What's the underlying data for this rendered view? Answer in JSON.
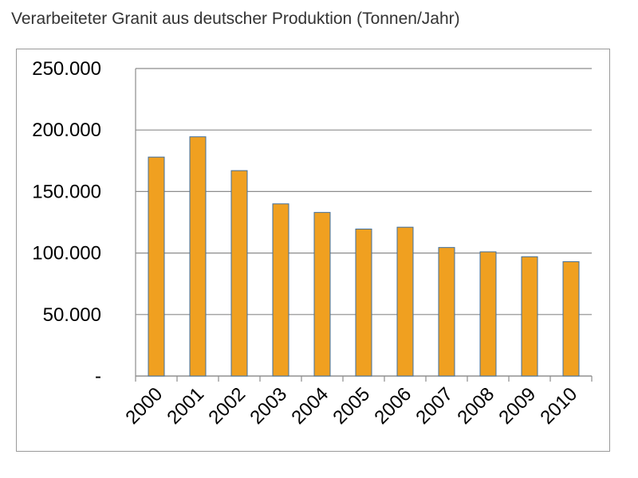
{
  "chart_data": {
    "type": "bar",
    "title": "Verarbeiteter Granit aus deutscher Produktion (Tonnen/Jahr)",
    "xlabel": "",
    "ylabel": "",
    "categories": [
      "2000",
      "2001",
      "2002",
      "2003",
      "2004",
      "2005",
      "2006",
      "2007",
      "2008",
      "2009",
      "2010"
    ],
    "values": [
      178000,
      194500,
      167000,
      140000,
      133000,
      119500,
      121000,
      104500,
      101000,
      97000,
      93000
    ],
    "ylim": [
      0,
      250000
    ],
    "yticks": [
      0,
      50000,
      100000,
      150000,
      200000,
      250000
    ],
    "ytick_labels": [
      "-",
      "50.000",
      "100.000",
      "150.000",
      "200.000",
      "250.000"
    ],
    "grid": true,
    "legend": "none",
    "colors": {
      "bar_fill": "#f0a020",
      "bar_stroke": "#3f6f9f",
      "grid": "#8c8c8c",
      "axis": "#8c8c8c"
    }
  }
}
